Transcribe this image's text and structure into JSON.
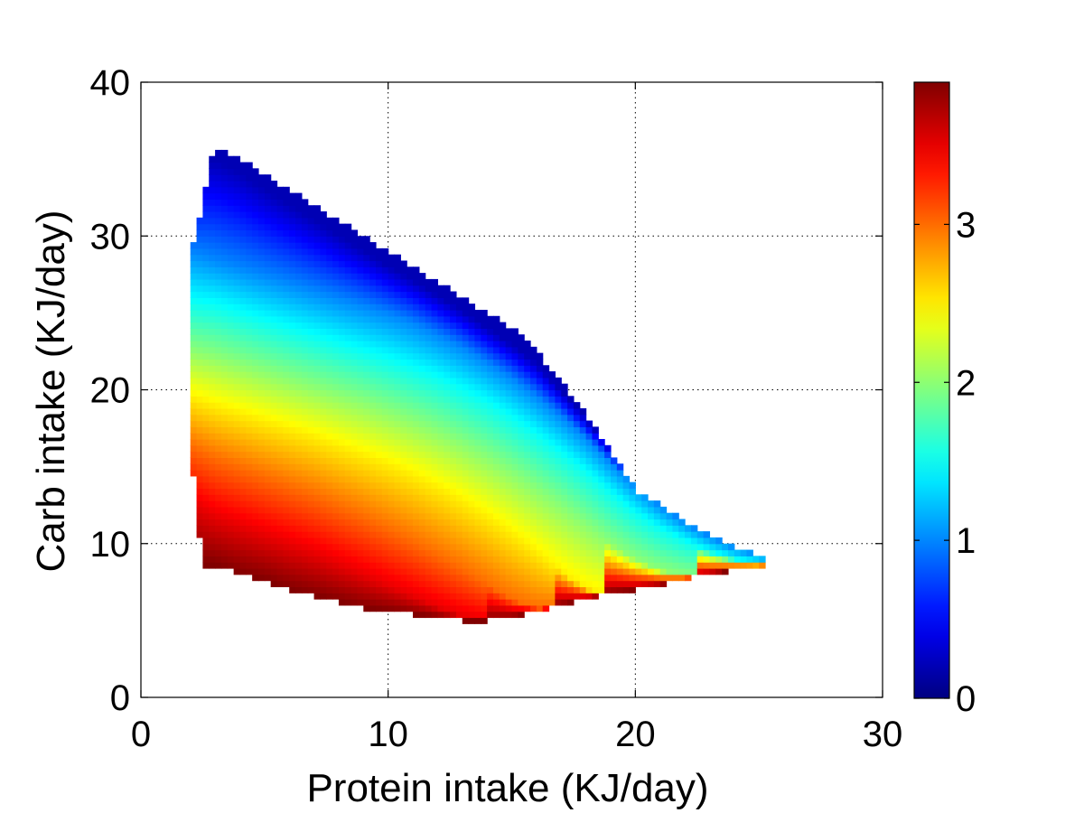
{
  "chart_data": {
    "type": "heatmap",
    "title": "",
    "xlabel": "Protein intake (KJ/day)",
    "ylabel": "Carb intake (KJ/day)",
    "xlim": [
      0,
      30
    ],
    "ylim": [
      0,
      40
    ],
    "xticks": [
      0,
      10,
      20,
      30
    ],
    "yticks": [
      0,
      10,
      20,
      30,
      40
    ],
    "xtick_labels": [
      "0",
      "10",
      "20",
      "30"
    ],
    "ytick_labels": [
      "0",
      "10",
      "20",
      "30",
      "40"
    ],
    "grid": true,
    "colormap": "jet",
    "colorbar": {
      "range": [
        0,
        3.9
      ],
      "ticks": [
        0,
        1,
        2,
        3
      ],
      "tick_labels": [
        "0",
        "1",
        "2",
        "3"
      ]
    },
    "region": {
      "x": [
        2.0,
        2.5,
        3.0,
        4.0,
        5.0,
        6.0,
        7.0,
        8.0,
        9.0,
        10.0,
        11.0,
        12.0,
        13.0,
        14.0,
        15.0,
        16.0,
        17.0,
        18.0,
        19.0,
        20.0,
        21.0,
        22.0,
        23.0,
        24.0,
        25.0,
        25.6
      ],
      "y_lower": [
        16.3,
        8.6,
        8.6,
        8.0,
        7.6,
        7.0,
        6.6,
        6.2,
        5.8,
        5.6,
        5.4,
        5.2,
        5.0,
        5.0,
        5.2,
        5.6,
        6.0,
        6.4,
        6.8,
        7.0,
        7.3,
        7.7,
        8.0,
        8.3,
        8.5,
        8.7
      ],
      "y_upper": [
        28.5,
        32.3,
        35.9,
        35.0,
        34.0,
        33.0,
        32.0,
        31.0,
        30.0,
        29.0,
        28.0,
        27.0,
        26.0,
        25.0,
        24.0,
        22.5,
        20.5,
        18.5,
        16.0,
        13.5,
        12.5,
        11.5,
        10.5,
        9.8,
        9.3,
        8.7
      ]
    },
    "value_isolines": [
      {
        "value": 0.2,
        "y": [
          34.0,
          34.8,
          35.0,
          34.2,
          33.1,
          32.1,
          31.1,
          30.1,
          29.1,
          28.1,
          27.2,
          26.2,
          25.2,
          24.1,
          23.0,
          21.8,
          20.0,
          18.2,
          16.2,
          14.4,
          12.9,
          11.7,
          10.8,
          10.1,
          9.6,
          9.2
        ]
      },
      {
        "value": 1.0,
        "y": [
          29.0,
          28.8,
          28.5,
          28.0,
          27.5,
          27.0,
          26.5,
          26.0,
          25.5,
          25.0,
          24.4,
          23.6,
          22.8,
          21.8,
          20.8,
          19.6,
          18.3,
          16.9,
          15.3,
          13.8,
          12.5,
          11.4,
          10.5,
          9.8,
          9.3,
          8.9
        ]
      },
      {
        "value": 1.5,
        "y": [
          25.8,
          25.6,
          25.5,
          25.0,
          24.5,
          24.0,
          23.5,
          23.0,
          22.5,
          22.0,
          21.4,
          20.8,
          20.0,
          19.2,
          18.2,
          17.1,
          15.9,
          14.7,
          13.3,
          12.0,
          11.0,
          10.2,
          9.5,
          9.0,
          8.7,
          8.6
        ]
      },
      {
        "value": 2.0,
        "y": [
          22.6,
          22.4,
          22.2,
          21.7,
          21.2,
          20.7,
          20.2,
          19.7,
          19.2,
          18.6,
          18.0,
          17.3,
          16.5,
          15.6,
          14.6,
          13.5,
          12.4,
          11.2,
          10.0,
          9.0,
          8.3,
          7.9,
          7.8,
          7.9,
          8.2,
          8.5
        ]
      },
      {
        "value": 2.5,
        "y": [
          19.6,
          19.3,
          19.0,
          18.5,
          18.0,
          17.5,
          17.0,
          16.4,
          15.8,
          15.2,
          14.5,
          13.7,
          12.8,
          11.8,
          10.7,
          9.5,
          8.2,
          7.1,
          6.6,
          6.8,
          7.2,
          7.6,
          7.9,
          8.2,
          8.4,
          8.6
        ]
      },
      {
        "value": 3.0,
        "y": [
          16.4,
          16.0,
          15.6,
          15.0,
          14.4,
          13.8,
          13.2,
          12.5,
          11.8,
          11.0,
          10.2,
          9.3,
          8.4,
          7.4,
          6.4,
          5.8,
          5.9,
          6.3,
          6.7,
          6.9,
          7.2,
          7.6,
          7.9,
          8.2,
          8.4,
          8.6
        ]
      },
      {
        "value": 3.5,
        "y": [
          12.8,
          12.3,
          11.8,
          11.2,
          10.6,
          10.0,
          9.4,
          8.7,
          8.0,
          7.3,
          6.6,
          5.9,
          5.3,
          5.0,
          5.1,
          5.5,
          5.9,
          6.3,
          6.7,
          6.9,
          7.2,
          7.6,
          7.9,
          8.2,
          8.4,
          8.6
        ]
      },
      {
        "value": 3.9,
        "y": [
          9.0,
          8.7,
          8.6,
          8.0,
          7.6,
          7.0,
          6.6,
          6.2,
          5.8,
          5.6,
          5.4,
          5.2,
          5.0,
          5.0,
          5.2,
          5.6,
          6.0,
          6.4,
          6.8,
          7.0,
          7.3,
          7.7,
          8.0,
          8.3,
          8.5,
          8.7
        ]
      }
    ]
  }
}
